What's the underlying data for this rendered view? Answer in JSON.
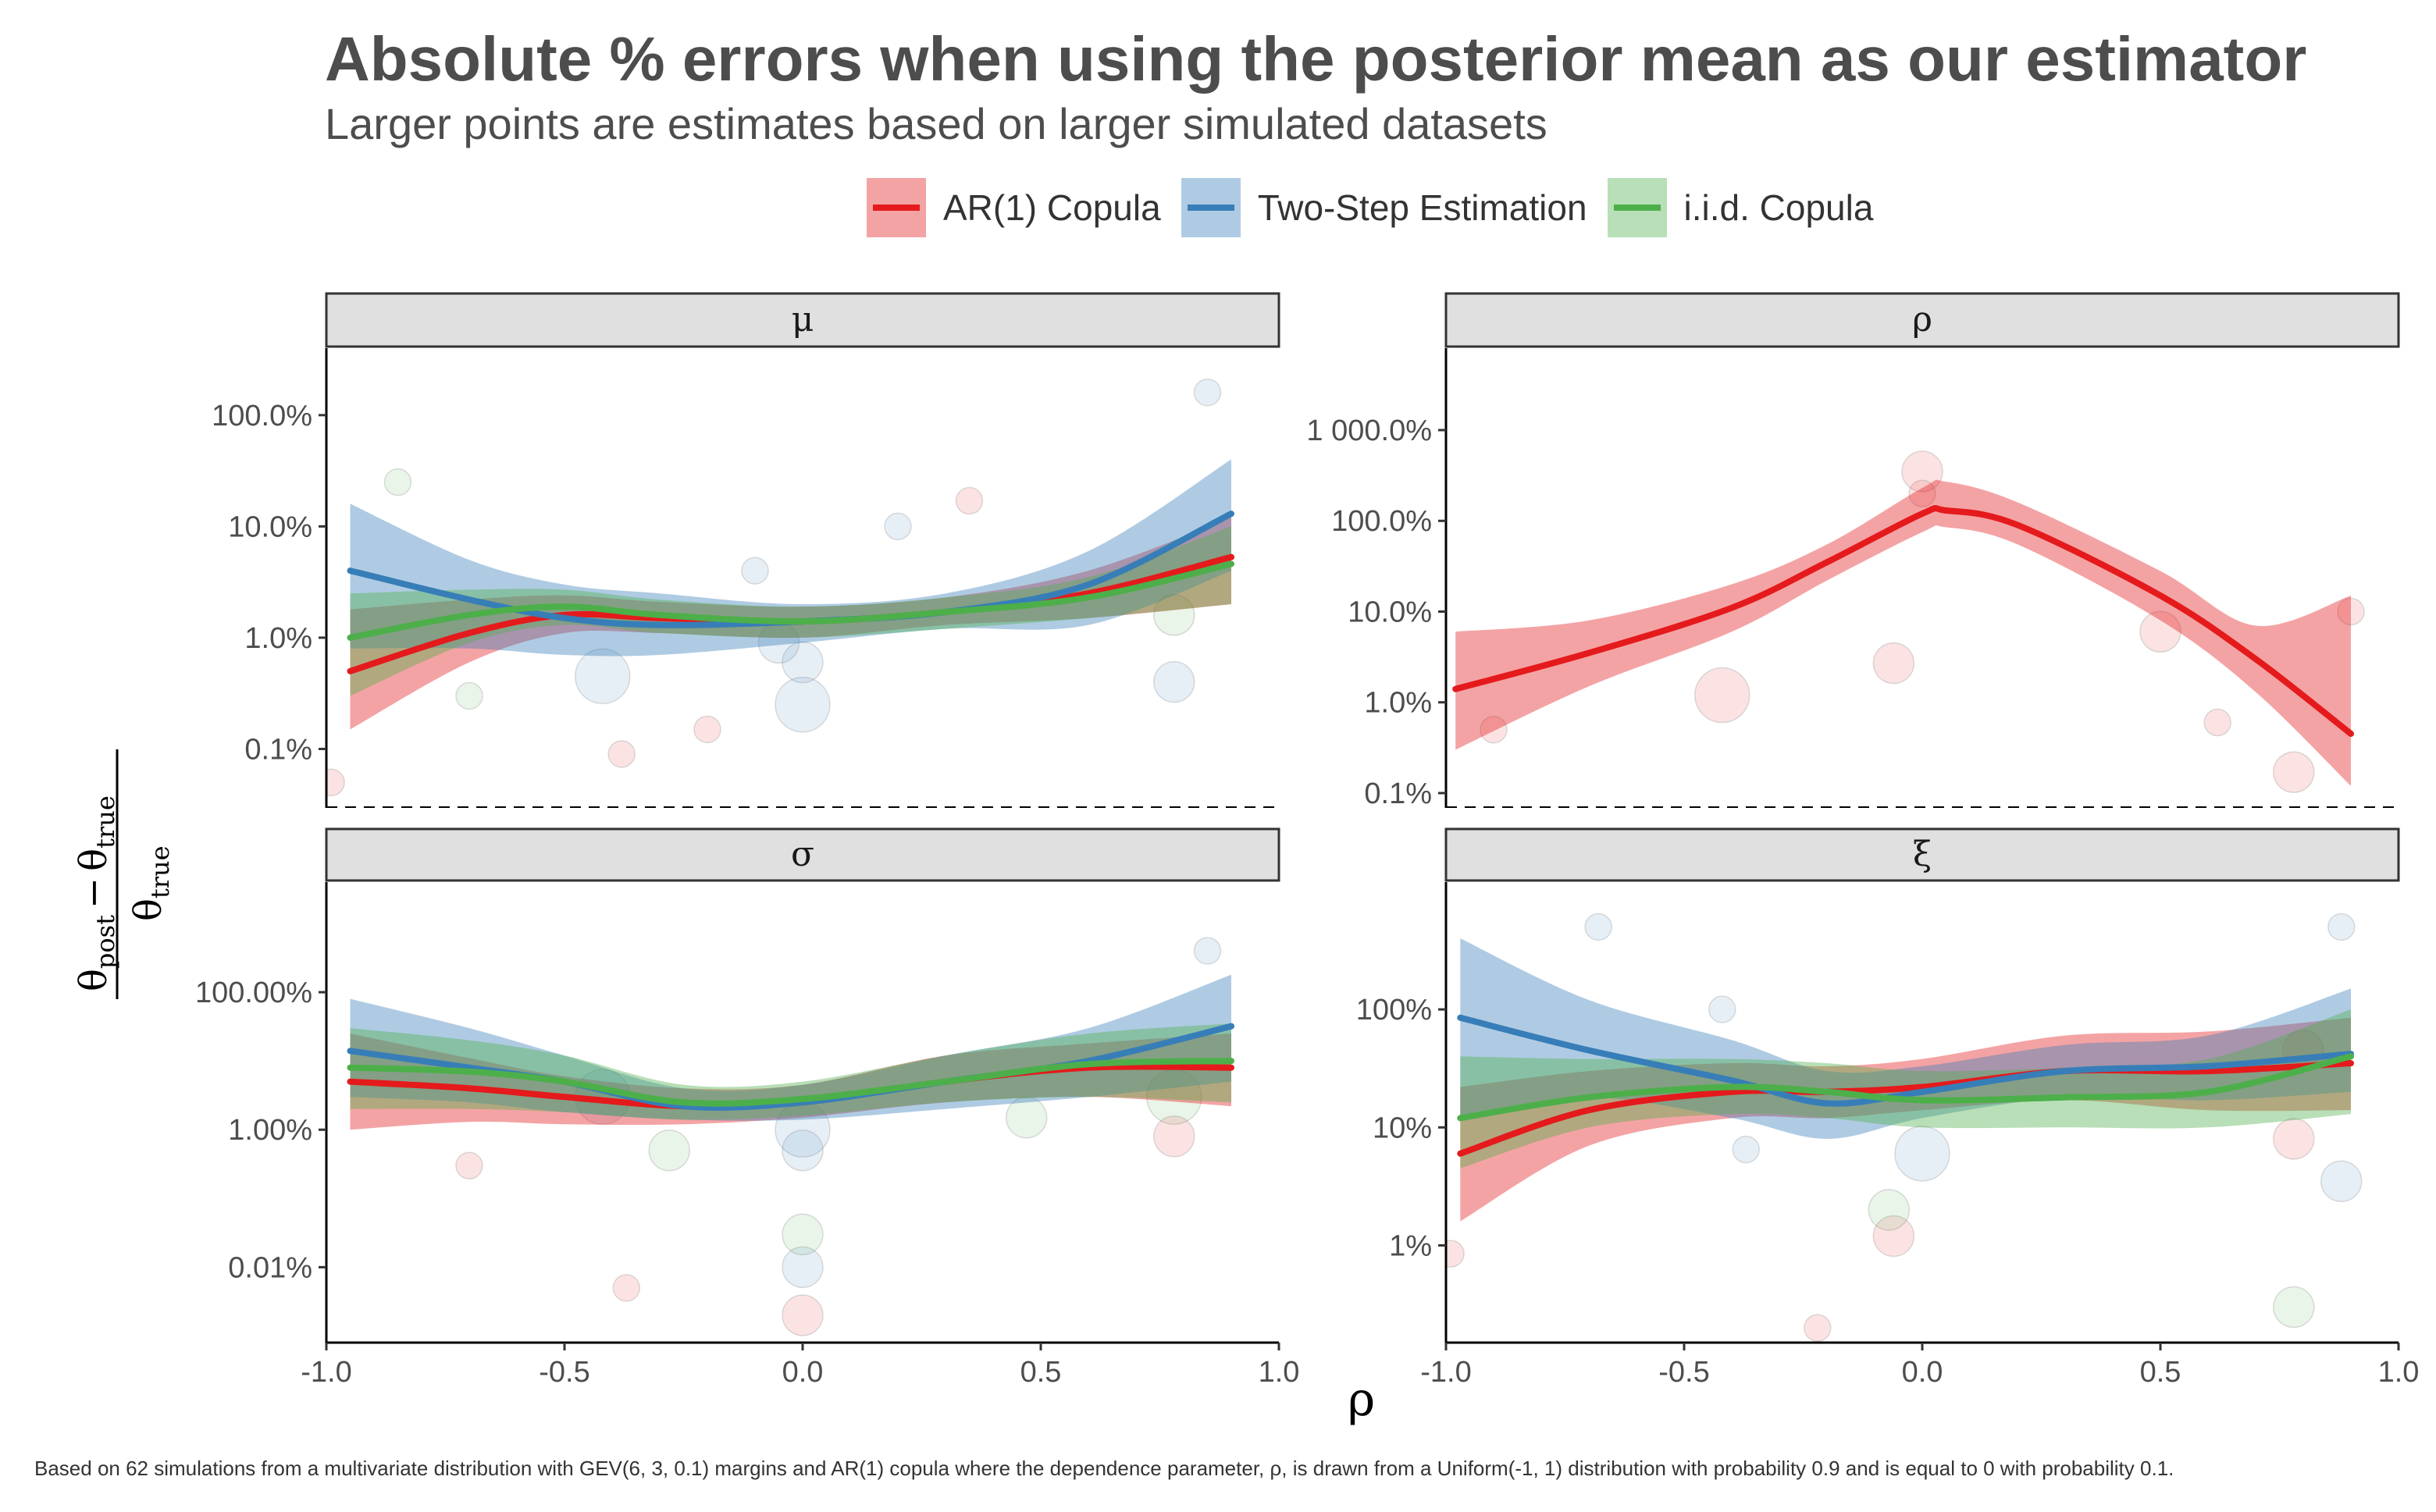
{
  "title": "Absolute % errors when using the posterior mean as our estimator",
  "subtitle": "Larger points are estimates based on larger simulated datasets",
  "caption": "Based on 62 simulations from a multivariate distribution with GEV(6, 3, 0.1) margins and AR(1) copula where the dependence parameter, ρ, is drawn from a Uniform(-1, 1) distribution with probability 0.9 and is equal to 0 with probability 0.1.",
  "x_axis_title": "ρ",
  "y_axis_title": {
    "numerator_symbol": "θ",
    "sub_post": "post",
    "minus": "−",
    "sub_true": "true"
  },
  "legend": [
    {
      "name": "AR(1) Copula",
      "color": "#E41A1C"
    },
    {
      "name": "Two-Step Estimation",
      "color": "#377EB8"
    },
    {
      "name": "i.i.d. Copula",
      "color": "#4DAF4A"
    }
  ],
  "chart_data": [
    {
      "type": "line",
      "facet": "μ",
      "y_scale": "log10",
      "ylim": [
        0.0003,
        4
      ],
      "xlim": [
        -1.0,
        1.0
      ],
      "x_ticks": [
        -1.0,
        -0.5,
        0.0,
        0.5,
        1.0
      ],
      "x_tick_labels": [
        "-1.0",
        "-0.5",
        "0.0",
        "0.5",
        "1.0"
      ],
      "y_ticks": [
        0.001,
        0.01,
        0.1,
        1
      ],
      "y_tick_labels": [
        "0.1%",
        "1.0%",
        "10.0%",
        "100.0%"
      ],
      "x": [
        -0.95,
        -0.7,
        -0.5,
        -0.3,
        0.0,
        0.3,
        0.6,
        0.9
      ],
      "series": [
        {
          "name": "AR(1) Copula",
          "values": [
            0.005,
            0.011,
            0.016,
            0.015,
            0.014,
            0.017,
            0.025,
            0.053
          ],
          "lower": [
            0.0015,
            0.006,
            0.011,
            0.011,
            0.01,
            0.013,
            0.015,
            0.02
          ],
          "upper": [
            0.018,
            0.022,
            0.024,
            0.021,
            0.019,
            0.023,
            0.04,
            0.12
          ]
        },
        {
          "name": "Two-Step Estimation",
          "values": [
            0.04,
            0.022,
            0.015,
            0.013,
            0.014,
            0.017,
            0.03,
            0.13
          ],
          "lower": [
            0.008,
            0.008,
            0.007,
            0.007,
            0.009,
            0.012,
            0.013,
            0.04
          ],
          "upper": [
            0.16,
            0.05,
            0.03,
            0.025,
            0.02,
            0.025,
            0.06,
            0.4
          ]
        },
        {
          "name": "i.i.d. Copula",
          "values": [
            0.01,
            0.016,
            0.019,
            0.016,
            0.014,
            0.017,
            0.023,
            0.046
          ],
          "lower": [
            0.003,
            0.009,
            0.013,
            0.011,
            0.01,
            0.012,
            0.015,
            0.02
          ],
          "upper": [
            0.025,
            0.027,
            0.027,
            0.022,
            0.019,
            0.023,
            0.035,
            0.1
          ]
        }
      ],
      "points": [
        {
          "x": -0.42,
          "y": 0.0045,
          "series": "Two-Step Estimation",
          "size": 3
        },
        {
          "x": 0.0,
          "y": 0.0025,
          "series": "Two-Step Estimation",
          "size": 3
        },
        {
          "x": 0.0,
          "y": 0.006,
          "series": "Two-Step Estimation",
          "size": 2
        },
        {
          "x": -0.7,
          "y": 0.003,
          "series": "i.i.d. Copula",
          "size": 1
        },
        {
          "x": -0.38,
          "y": 0.0009,
          "series": "AR(1) Copula",
          "size": 1
        },
        {
          "x": -0.1,
          "y": 0.04,
          "series": "Two-Step Estimation",
          "size": 1
        },
        {
          "x": 0.78,
          "y": 0.016,
          "series": "i.i.d. Copula",
          "size": 2
        },
        {
          "x": 0.78,
          "y": 0.004,
          "series": "Two-Step Estimation",
          "size": 2
        },
        {
          "x": 0.85,
          "y": 1.6,
          "series": "Two-Step Estimation",
          "size": 1
        },
        {
          "x": -0.85,
          "y": 0.25,
          "series": "i.i.d. Copula",
          "size": 1
        },
        {
          "x": -0.99,
          "y": 0.0005,
          "series": "AR(1) Copula",
          "size": 1
        },
        {
          "x": 0.35,
          "y": 0.17,
          "series": "AR(1) Copula",
          "size": 1
        },
        {
          "x": 0.2,
          "y": 0.1,
          "series": "Two-Step Estimation",
          "size": 1
        },
        {
          "x": -0.05,
          "y": 0.009,
          "series": "Two-Step Estimation",
          "size": 2
        },
        {
          "x": -0.2,
          "y": 0.0015,
          "series": "AR(1) Copula",
          "size": 1
        }
      ]
    },
    {
      "type": "line",
      "facet": "ρ",
      "y_scale": "log10",
      "ylim": [
        0.0007,
        80
      ],
      "xlim": [
        -1.0,
        1.0
      ],
      "x_ticks": [
        -1.0,
        -0.5,
        0.0,
        0.5,
        1.0
      ],
      "x_tick_labels": [
        "-1.0",
        "-0.5",
        "0.0",
        "0.5",
        "1.0"
      ],
      "y_ticks": [
        0.001,
        0.01,
        0.1,
        1,
        10
      ],
      "y_tick_labels": [
        "0.1%",
        "1.0%",
        "10.0%",
        "100.0%",
        "1 000.0%"
      ],
      "x": [
        -0.98,
        -0.7,
        -0.4,
        -0.2,
        0.0,
        0.05,
        0.2,
        0.5,
        0.7,
        0.9
      ],
      "series": [
        {
          "name": "AR(1) Copula",
          "values": [
            0.014,
            0.035,
            0.11,
            0.35,
            1.2,
            1.3,
            0.9,
            0.15,
            0.03,
            0.0045
          ],
          "lower": [
            0.003,
            0.015,
            0.06,
            0.22,
            0.75,
            0.85,
            0.55,
            0.08,
            0.013,
            0.0012
          ],
          "upper": [
            0.06,
            0.08,
            0.2,
            0.55,
            2.3,
            2.7,
            1.6,
            0.28,
            0.07,
            0.15
          ]
        }
      ],
      "points": [
        {
          "x": -0.42,
          "y": 0.012,
          "series": "AR(1) Copula",
          "size": 3
        },
        {
          "x": 0.0,
          "y": 3.5,
          "series": "AR(1) Copula",
          "size": 2
        },
        {
          "x": 0.0,
          "y": 2.0,
          "series": "AR(1) Copula",
          "size": 1
        },
        {
          "x": -0.06,
          "y": 0.027,
          "series": "AR(1) Copula",
          "size": 2
        },
        {
          "x": 0.5,
          "y": 0.06,
          "series": "AR(1) Copula",
          "size": 2
        },
        {
          "x": 0.78,
          "y": 0.0017,
          "series": "AR(1) Copula",
          "size": 2
        },
        {
          "x": 0.9,
          "y": 0.1,
          "series": "AR(1) Copula",
          "size": 1
        },
        {
          "x": -0.9,
          "y": 0.005,
          "series": "AR(1) Copula",
          "size": 1
        },
        {
          "x": 0.62,
          "y": 0.006,
          "series": "AR(1) Copula",
          "size": 1
        }
      ]
    },
    {
      "type": "line",
      "facet": "σ",
      "y_scale": "log10",
      "ylim": [
        8e-06,
        40
      ],
      "xlim": [
        -1.0,
        1.0
      ],
      "x_ticks": [
        -1.0,
        -0.5,
        0.0,
        0.5,
        1.0
      ],
      "x_tick_labels": [
        "-1.0",
        "-0.5",
        "0.0",
        "0.5",
        "1.0"
      ],
      "y_ticks": [
        0.0001,
        0.01,
        1
      ],
      "y_tick_labels": [
        "0.01%",
        "1.00%",
        "100.00%"
      ],
      "x": [
        -0.95,
        -0.7,
        -0.5,
        -0.25,
        0.0,
        0.3,
        0.6,
        0.9
      ],
      "series": [
        {
          "name": "AR(1) Copula",
          "values": [
            0.05,
            0.04,
            0.03,
            0.022,
            0.025,
            0.05,
            0.08,
            0.08
          ],
          "lower": [
            0.01,
            0.013,
            0.012,
            0.012,
            0.015,
            0.025,
            0.03,
            0.022
          ],
          "upper": [
            0.25,
            0.11,
            0.06,
            0.04,
            0.045,
            0.12,
            0.18,
            0.25
          ]
        },
        {
          "name": "Two-Step Estimation",
          "values": [
            0.14,
            0.08,
            0.05,
            0.022,
            0.025,
            0.05,
            0.1,
            0.32
          ],
          "lower": [
            0.03,
            0.025,
            0.018,
            0.014,
            0.014,
            0.02,
            0.03,
            0.05
          ],
          "upper": [
            0.8,
            0.3,
            0.12,
            0.04,
            0.045,
            0.12,
            0.3,
            1.8
          ]
        },
        {
          "name": "i.i.d. Copula",
          "values": [
            0.08,
            0.07,
            0.05,
            0.025,
            0.028,
            0.05,
            0.09,
            0.1
          ],
          "lower": [
            0.02,
            0.02,
            0.018,
            0.014,
            0.016,
            0.025,
            0.03,
            0.025
          ],
          "upper": [
            0.3,
            0.2,
            0.12,
            0.045,
            0.05,
            0.12,
            0.25,
            0.35
          ]
        }
      ],
      "points": [
        {
          "x": 0.0,
          "y": 0.01,
          "series": "Two-Step Estimation",
          "size": 3
        },
        {
          "x": 0.0,
          "y": 0.005,
          "series": "Two-Step Estimation",
          "size": 2
        },
        {
          "x": 0.0,
          "y": 0.0003,
          "series": "i.i.d. Copula",
          "size": 2
        },
        {
          "x": 0.0,
          "y": 0.0001,
          "series": "Two-Step Estimation",
          "size": 2
        },
        {
          "x": 0.0,
          "y": 2e-05,
          "series": "AR(1) Copula",
          "size": 2
        },
        {
          "x": -0.37,
          "y": 5e-05,
          "series": "AR(1) Copula",
          "size": 1
        },
        {
          "x": 0.85,
          "y": 4.0,
          "series": "Two-Step Estimation",
          "size": 1
        },
        {
          "x": 0.78,
          "y": 0.03,
          "series": "i.i.d. Copula",
          "size": 3
        },
        {
          "x": 0.78,
          "y": 0.008,
          "series": "AR(1) Copula",
          "size": 2
        },
        {
          "x": -0.7,
          "y": 0.003,
          "series": "AR(1) Copula",
          "size": 1
        },
        {
          "x": -0.42,
          "y": 0.03,
          "series": "Two-Step Estimation",
          "size": 3
        },
        {
          "x": -0.28,
          "y": 0.005,
          "series": "i.i.d. Copula",
          "size": 2
        },
        {
          "x": 0.47,
          "y": 0.015,
          "series": "i.i.d. Copula",
          "size": 2
        }
      ]
    },
    {
      "type": "line",
      "facet": "ξ",
      "y_scale": "log10",
      "ylim": [
        0.0015,
        12
      ],
      "xlim": [
        -1.0,
        1.0
      ],
      "x_ticks": [
        -1.0,
        -0.5,
        0.0,
        0.5,
        1.0
      ],
      "x_tick_labels": [
        "-1.0",
        "-0.5",
        "0.0",
        "0.5",
        "1.0"
      ],
      "y_ticks": [
        0.01,
        0.1,
        1
      ],
      "y_tick_labels": [
        "1%",
        "10%",
        "100%"
      ],
      "x": [
        -0.97,
        -0.7,
        -0.4,
        -0.2,
        0.0,
        0.3,
        0.6,
        0.9
      ],
      "series": [
        {
          "name": "AR(1) Copula",
          "values": [
            0.06,
            0.14,
            0.2,
            0.2,
            0.22,
            0.3,
            0.3,
            0.35
          ],
          "lower": [
            0.016,
            0.07,
            0.12,
            0.12,
            0.14,
            0.17,
            0.14,
            0.14
          ],
          "upper": [
            0.22,
            0.3,
            0.35,
            0.33,
            0.38,
            0.6,
            0.65,
            0.85
          ]
        },
        {
          "name": "Two-Step Estimation",
          "values": [
            0.85,
            0.45,
            0.25,
            0.16,
            0.2,
            0.3,
            0.33,
            0.42
          ],
          "lower": [
            0.12,
            0.18,
            0.12,
            0.08,
            0.12,
            0.18,
            0.17,
            0.2
          ],
          "upper": [
            4.0,
            1.2,
            0.55,
            0.3,
            0.33,
            0.5,
            0.6,
            1.5
          ]
        },
        {
          "name": "i.i.d. Copula",
          "values": [
            0.12,
            0.18,
            0.22,
            0.2,
            0.17,
            0.18,
            0.2,
            0.4
          ],
          "lower": [
            0.045,
            0.1,
            0.13,
            0.12,
            0.1,
            0.1,
            0.1,
            0.13
          ],
          "upper": [
            0.4,
            0.38,
            0.38,
            0.35,
            0.3,
            0.32,
            0.38,
            1.0
          ]
        }
      ],
      "points": [
        {
          "x": 0.0,
          "y": 0.06,
          "series": "Two-Step Estimation",
          "size": 3
        },
        {
          "x": -0.06,
          "y": 0.012,
          "series": "AR(1) Copula",
          "size": 2
        },
        {
          "x": 0.78,
          "y": 0.003,
          "series": "i.i.d. Copula",
          "size": 2
        },
        {
          "x": 0.78,
          "y": 0.08,
          "series": "AR(1) Copula",
          "size": 2
        },
        {
          "x": 0.88,
          "y": 0.035,
          "series": "Two-Step Estimation",
          "size": 2
        },
        {
          "x": -0.22,
          "y": 0.002,
          "series": "AR(1) Copula",
          "size": 1
        },
        {
          "x": -0.07,
          "y": 0.02,
          "series": "i.i.d. Copula",
          "size": 2
        },
        {
          "x": -0.42,
          "y": 1.0,
          "series": "Two-Step Estimation",
          "size": 1
        },
        {
          "x": 0.88,
          "y": 5.0,
          "series": "Two-Step Estimation",
          "size": 1
        },
        {
          "x": -0.68,
          "y": 5.0,
          "series": "Two-Step Estimation",
          "size": 1
        },
        {
          "x": 0.8,
          "y": 0.45,
          "series": "AR(1) Copula",
          "size": 2
        },
        {
          "x": -0.37,
          "y": 0.065,
          "series": "Two-Step Estimation",
          "size": 1
        },
        {
          "x": -0.99,
          "y": 0.0085,
          "series": "AR(1) Copula",
          "size": 1
        }
      ]
    }
  ]
}
